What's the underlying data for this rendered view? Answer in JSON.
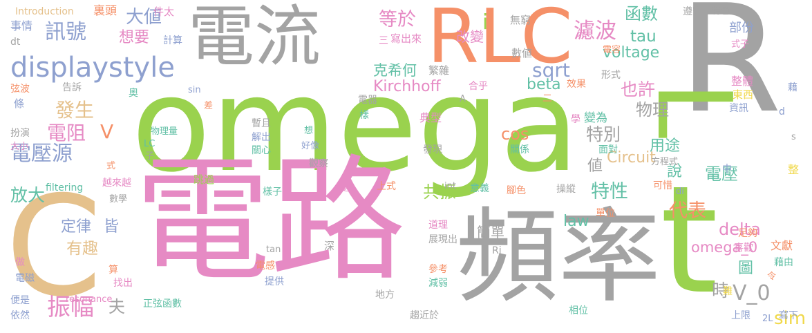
{
  "palette": {
    "green": "#9ad24e",
    "pink": "#e68ac4",
    "gray": "#a3a3a3",
    "orange": "#f59068",
    "tan": "#e5c18c",
    "blue": "#8ea0cf",
    "teal": "#62c0a6",
    "yellow": "#f0d84a"
  },
  "words": [
    {
      "text": "omega",
      "color": "green"
    },
    {
      "text": "電路",
      "color": "pink"
    },
    {
      "text": "頻率",
      "color": "gray"
    },
    {
      "text": "電流",
      "color": "gray"
    },
    {
      "text": "RLC",
      "color": "orange"
    },
    {
      "text": "R",
      "color": "gray"
    },
    {
      "text": "L",
      "color": "green"
    },
    {
      "text": "t",
      "color": "green"
    },
    {
      "text": "C",
      "color": "tan"
    },
    {
      "text": "displaystyle",
      "color": "blue"
    },
    {
      "text": "訊號",
      "color": "blue"
    },
    {
      "text": "大値",
      "color": "blue"
    },
    {
      "text": "想要",
      "color": "pink"
    },
    {
      "text": "等於",
      "color": "pink"
    },
    {
      "text": "函數",
      "color": "teal"
    },
    {
      "text": "濾波",
      "color": "pink"
    },
    {
      "text": "tau",
      "color": "teal"
    },
    {
      "text": "voltage",
      "color": "teal"
    },
    {
      "text": "sqrt",
      "color": "blue"
    },
    {
      "text": "克希何",
      "color": "teal"
    },
    {
      "text": "Kirchhoff",
      "color": "pink"
    },
    {
      "text": "也許",
      "color": "pink"
    },
    {
      "text": "beta",
      "color": "teal"
    },
    {
      "text": "物理",
      "color": "gray"
    },
    {
      "text": "發生",
      "color": "tan"
    },
    {
      "text": "電阻",
      "color": "pink"
    },
    {
      "text": "特別",
      "color": "gray"
    },
    {
      "text": "電壓源",
      "color": "blue"
    },
    {
      "text": "cos",
      "color": "orange"
    },
    {
      "text": "用途",
      "color": "teal"
    },
    {
      "text": "Circuit",
      "color": "tan"
    },
    {
      "text": "說",
      "color": "teal"
    },
    {
      "text": "電壓",
      "color": "teal"
    },
    {
      "text": "特性",
      "color": "teal"
    },
    {
      "text": "値",
      "color": "gray"
    },
    {
      "text": "放大",
      "color": "teal"
    },
    {
      "text": "共振",
      "color": "green"
    },
    {
      "text": "代表",
      "color": "orange"
    },
    {
      "text": "delta",
      "color": "pink"
    },
    {
      "text": "定律",
      "color": "blue"
    },
    {
      "text": "皆",
      "color": "blue"
    },
    {
      "text": "簡單",
      "color": "gray"
    },
    {
      "text": "law",
      "color": "teal"
    },
    {
      "text": "omega_0",
      "color": "pink"
    },
    {
      "text": "有趣",
      "color": "tan"
    },
    {
      "text": "圖",
      "color": "teal"
    },
    {
      "text": "時",
      "color": "gray"
    },
    {
      "text": "V_0",
      "color": "gray"
    },
    {
      "text": "振幅",
      "color": "pink"
    },
    {
      "text": "夫",
      "color": "gray"
    },
    {
      "text": "sim",
      "color": "yellow"
    },
    {
      "text": "V",
      "color": "orange"
    },
    {
      "text": "i",
      "color": "green"
    },
    {
      "text": "Introduction",
      "color": "tan"
    },
    {
      "text": "裏頭",
      "color": "orange"
    },
    {
      "text": "件太",
      "color": "pink"
    },
    {
      "text": "事情",
      "color": "blue"
    },
    {
      "text": "dt",
      "color": "gray"
    },
    {
      "text": "計算",
      "color": "blue"
    },
    {
      "text": "改變",
      "color": "pink"
    },
    {
      "text": "三",
      "color": "pink"
    },
    {
      "text": "寫出來",
      "color": "pink"
    },
    {
      "text": "無窮",
      "color": "gray"
    },
    {
      "text": "數値",
      "color": "gray"
    },
    {
      "text": "繁雜",
      "color": "gray"
    },
    {
      "text": "先",
      "color": "pink"
    },
    {
      "text": "電容",
      "color": "orange"
    },
    {
      "text": "遵守",
      "color": "gray"
    },
    {
      "text": "特色",
      "color": "gray"
    },
    {
      "text": "部份",
      "color": "blue"
    },
    {
      "text": "式子",
      "color": "pink"
    },
    {
      "text": "整體",
      "color": "pink"
    },
    {
      "text": "東西",
      "color": "yellow"
    },
    {
      "text": "資訊",
      "color": "blue"
    },
    {
      "text": "藉",
      "color": "blue"
    },
    {
      "text": "形式",
      "color": "gray"
    },
    {
      "text": "效果",
      "color": "orange"
    },
    {
      "text": "合乎",
      "color": "pink"
    },
    {
      "text": "二",
      "color": "orange"
    },
    {
      "text": "弦波",
      "color": "orange"
    },
    {
      "text": "告訴",
      "color": "gray"
    },
    {
      "text": "奧",
      "color": "teal"
    },
    {
      "text": "sin",
      "color": "blue"
    },
    {
      "text": "條",
      "color": "blue"
    },
    {
      "text": "電器",
      "color": "gray"
    },
    {
      "text": "A",
      "color": "gray"
    },
    {
      "text": "差",
      "color": "orange"
    },
    {
      "text": "扮演",
      "color": "gray"
    },
    {
      "text": "大小",
      "color": "pink"
    },
    {
      "text": "物理量",
      "color": "teal"
    },
    {
      "text": "暫且",
      "color": "gray"
    },
    {
      "text": "解出",
      "color": "blue"
    },
    {
      "text": "關心",
      "color": "teal"
    },
    {
      "text": "好像",
      "color": "blue"
    },
    {
      "text": "想",
      "color": "teal"
    },
    {
      "text": "樣",
      "color": "teal"
    },
    {
      "text": "典型",
      "color": "pink"
    },
    {
      "text": "學",
      "color": "pink"
    },
    {
      "text": "變為",
      "color": "teal"
    },
    {
      "text": "發現",
      "color": "gray"
    },
    {
      "text": "關係",
      "color": "teal"
    },
    {
      "text": "LC",
      "color": "teal"
    },
    {
      "text": "子",
      "color": "gray"
    },
    {
      "text": "面對",
      "color": "teal"
    },
    {
      "text": "方程式",
      "color": "gray"
    },
    {
      "text": "d",
      "color": "blue"
    },
    {
      "text": "s",
      "color": "gray"
    },
    {
      "text": "中",
      "color": "blue"
    },
    {
      "text": "整",
      "color": "yellow"
    },
    {
      "text": "式",
      "color": "orange"
    },
    {
      "text": "觀察",
      "color": "gray"
    },
    {
      "text": "跳過",
      "color": "green"
    },
    {
      "text": "filtering",
      "color": "teal"
    },
    {
      "text": "越來越",
      "color": "pink"
    },
    {
      "text": "數學",
      "color": "gray"
    },
    {
      "text": "樣子",
      "color": "teal"
    },
    {
      "text": "變",
      "color": "pink"
    },
    {
      "text": "上式",
      "color": "orange"
    },
    {
      "text": "int",
      "color": "gray"
    },
    {
      "text": "意義",
      "color": "teal"
    },
    {
      "text": "腳色",
      "color": "orange"
    },
    {
      "text": "操縱",
      "color": "gray"
    },
    {
      "text": "可惜",
      "color": "orange"
    },
    {
      "text": "di",
      "color": "blue"
    },
    {
      "text": "單位",
      "color": "orange"
    },
    {
      "text": "道理",
      "color": "pink"
    },
    {
      "text": "展現出",
      "color": "gray"
    },
    {
      "text": "足夠",
      "color": "orange"
    },
    {
      "text": "喜歡",
      "color": "pink"
    },
    {
      "text": "文獻",
      "color": "orange"
    },
    {
      "text": "深",
      "color": "gray"
    },
    {
      "text": "tan",
      "color": "gray"
    },
    {
      "text": "Ri",
      "color": "gray"
    },
    {
      "text": "藉由",
      "color": "teal"
    },
    {
      "text": "令",
      "color": "orange"
    },
    {
      "text": "做",
      "color": "pink"
    },
    {
      "text": "算",
      "color": "orange"
    },
    {
      "text": "電磁",
      "color": "blue"
    },
    {
      "text": "電感",
      "color": "orange"
    },
    {
      "text": "找出",
      "color": "pink"
    },
    {
      "text": "提供",
      "color": "blue"
    },
    {
      "text": "參考",
      "color": "orange"
    },
    {
      "text": "減弱",
      "color": "teal"
    },
    {
      "text": "難",
      "color": "yellow"
    },
    {
      "text": "便是",
      "color": "blue"
    },
    {
      "text": "依然",
      "color": "blue"
    },
    {
      "text": "resonance",
      "color": "pink"
    },
    {
      "text": "正弦函數",
      "color": "teal"
    },
    {
      "text": "地方",
      "color": "gray"
    },
    {
      "text": "趨近於",
      "color": "gray"
    },
    {
      "text": "相位",
      "color": "teal"
    },
    {
      "text": "上限",
      "color": "blue"
    },
    {
      "text": "2L",
      "color": "blue"
    },
    {
      "text": "寫下",
      "color": "blue"
    }
  ]
}
